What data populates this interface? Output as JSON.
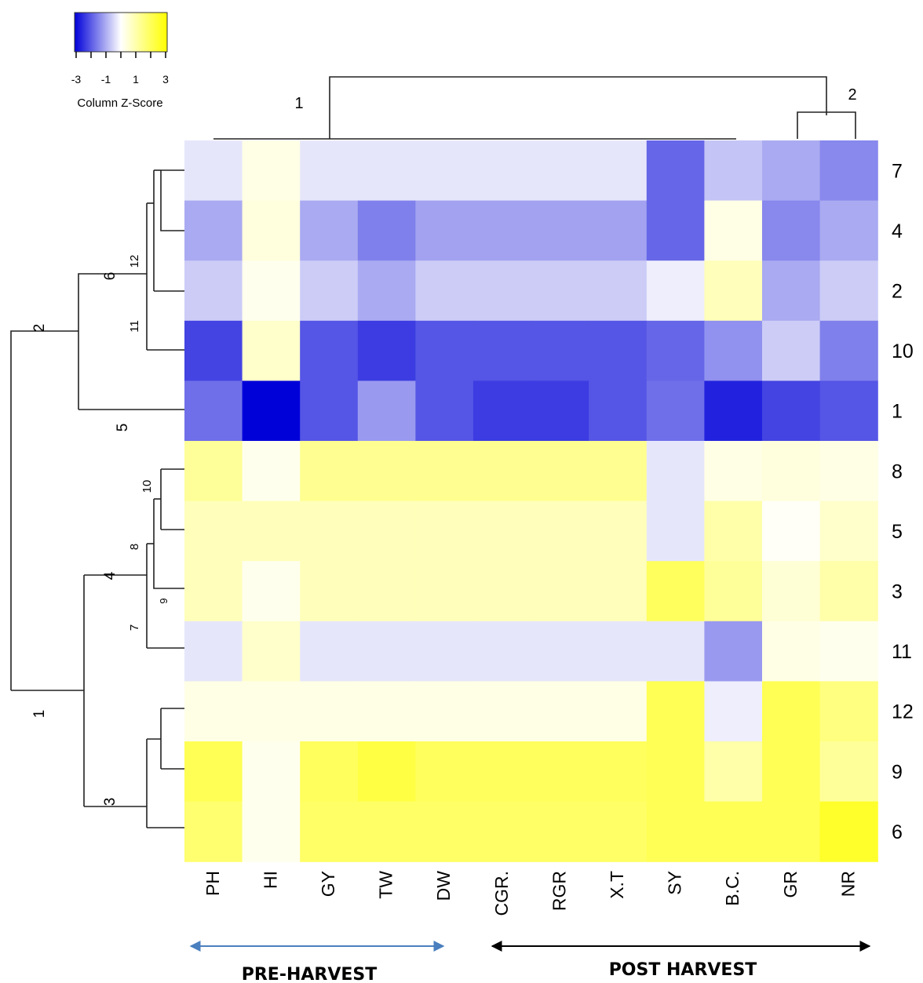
{
  "chart_data": {
    "type": "heatmap",
    "title": "",
    "xlabel": "",
    "ylabel": "",
    "columns": [
      "PH",
      "HI",
      "GY",
      "TW",
      "DW",
      "CGR.",
      "RGR",
      "X.T",
      "SY",
      "B.C.",
      "GR",
      "NR"
    ],
    "rows": [
      "7",
      "4",
      "2",
      "10",
      "1",
      "8",
      "5",
      "3",
      "11",
      "12",
      "9",
      "6"
    ],
    "z_scores": [
      [
        -0.3,
        0.3,
        -0.3,
        -0.3,
        -0.3,
        -0.3,
        -0.3,
        -0.3,
        -1.8,
        -0.7,
        -1.0,
        -1.4
      ],
      [
        -1.0,
        0.4,
        -1.0,
        -1.5,
        -1.1,
        -1.1,
        -1.1,
        -1.1,
        -1.8,
        0.3,
        -1.4,
        -1.0
      ],
      [
        -0.6,
        0.2,
        -0.6,
        -1.0,
        -0.6,
        -0.6,
        -0.6,
        -0.6,
        -0.2,
        0.8,
        -1.0,
        -0.6
      ],
      [
        -2.2,
        0.6,
        -2.0,
        -2.3,
        -2.0,
        -2.0,
        -2.0,
        -2.0,
        -1.8,
        -1.3,
        -0.6,
        -1.5
      ],
      [
        -1.7,
        -3.0,
        -2.0,
        -1.2,
        -2.0,
        -2.3,
        -2.3,
        -2.0,
        -1.7,
        -2.6,
        -2.2,
        -2.0
      ],
      [
        1.2,
        0.2,
        1.3,
        1.3,
        1.3,
        1.3,
        1.3,
        1.3,
        -0.3,
        0.3,
        0.4,
        0.3
      ],
      [
        0.8,
        0.8,
        0.8,
        0.8,
        0.8,
        0.8,
        0.8,
        0.8,
        -0.3,
        1.0,
        0.1,
        0.6
      ],
      [
        0.8,
        0.2,
        0.8,
        0.8,
        0.8,
        0.8,
        0.8,
        0.8,
        1.9,
        1.2,
        0.5,
        1.0
      ],
      [
        -0.3,
        0.6,
        -0.3,
        -0.3,
        -0.3,
        -0.3,
        -0.3,
        -0.3,
        -0.3,
        -1.2,
        0.3,
        0.2
      ],
      [
        0.3,
        0.3,
        0.3,
        0.3,
        0.3,
        0.3,
        0.3,
        0.3,
        2.0,
        -0.2,
        2.0,
        1.5
      ],
      [
        2.0,
        0.2,
        1.9,
        2.2,
        1.9,
        1.9,
        1.9,
        1.9,
        2.0,
        1.0,
        2.0,
        1.2
      ],
      [
        1.7,
        0.2,
        1.8,
        1.8,
        1.8,
        1.8,
        1.8,
        1.8,
        2.0,
        2.0,
        2.0,
        2.5
      ]
    ],
    "color_scale": {
      "min": -3,
      "mid": 0,
      "max": 3,
      "low": "#0000d9",
      "mid_color": "#ffffff",
      "high": "#ffff00"
    }
  },
  "legend": {
    "title": "Column Z-Score",
    "ticks": [
      "-3",
      "-1",
      "1",
      "3"
    ]
  },
  "column_dendrogram": {
    "cluster_labels": [
      "1",
      "2"
    ]
  },
  "row_dendrogram": {
    "cluster_labels": [
      "1",
      "2",
      "3",
      "4",
      "5",
      "6",
      "7",
      "8",
      "9",
      "10",
      "11",
      "12"
    ]
  },
  "groups": {
    "pre_harvest": {
      "label": "PRE-HARVEST",
      "color": "#4a7fbf"
    },
    "post_harvest": {
      "label": "POST HARVEST",
      "color": "#000000"
    }
  }
}
